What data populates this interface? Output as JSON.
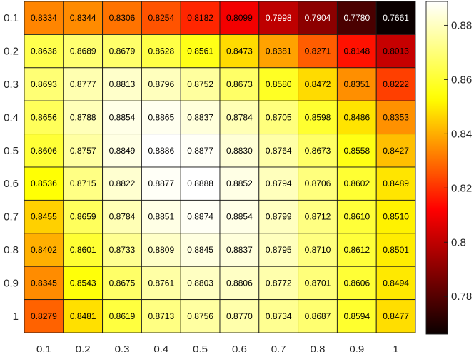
{
  "chart_data": {
    "type": "heatmap",
    "x_categories": [
      "0.1",
      "0.2",
      "0.3",
      "0.4",
      "0.5",
      "0.6",
      "0.7",
      "0.8",
      "0.9",
      "1"
    ],
    "y_categories": [
      "0.1",
      "0.2",
      "0.3",
      "0.4",
      "0.5",
      "0.6",
      "0.7",
      "0.8",
      "0.9",
      "1"
    ],
    "values": [
      [
        0.8334,
        0.8344,
        0.8306,
        0.8254,
        0.8182,
        0.8099,
        0.7998,
        0.7904,
        0.778,
        0.7661
      ],
      [
        0.8638,
        0.8689,
        0.8679,
        0.8628,
        0.8561,
        0.8473,
        0.8381,
        0.8271,
        0.8148,
        0.8013
      ],
      [
        0.8693,
        0.8777,
        0.8813,
        0.8796,
        0.8752,
        0.8673,
        0.858,
        0.8472,
        0.8351,
        0.8222
      ],
      [
        0.8656,
        0.8788,
        0.8854,
        0.8865,
        0.8837,
        0.8784,
        0.8705,
        0.8598,
        0.8486,
        0.8353
      ],
      [
        0.8606,
        0.8757,
        0.8849,
        0.8886,
        0.8877,
        0.883,
        0.8764,
        0.8673,
        0.8558,
        0.8427
      ],
      [
        0.8536,
        0.8715,
        0.8822,
        0.8877,
        0.8888,
        0.8852,
        0.8794,
        0.8706,
        0.8602,
        0.8489
      ],
      [
        0.8455,
        0.8659,
        0.8784,
        0.8851,
        0.8874,
        0.8854,
        0.8799,
        0.8712,
        0.861,
        0.851
      ],
      [
        0.8402,
        0.8601,
        0.8733,
        0.8809,
        0.8845,
        0.8837,
        0.8795,
        0.871,
        0.8612,
        0.8501
      ],
      [
        0.8345,
        0.8543,
        0.8675,
        0.8761,
        0.8803,
        0.8806,
        0.8772,
        0.8701,
        0.8606,
        0.8494
      ],
      [
        0.8279,
        0.8481,
        0.8619,
        0.8713,
        0.8756,
        0.877,
        0.8734,
        0.8687,
        0.8594,
        0.8477
      ]
    ],
    "colormap": "hot",
    "color_range": [
      0.7661,
      0.8888
    ],
    "colorbar": {
      "ticks": [
        0.78,
        0.8,
        0.82,
        0.84,
        0.86,
        0.88
      ],
      "tick_labels": [
        "0.78",
        "0.8",
        "0.82",
        "0.84",
        "0.86",
        "0.88"
      ]
    }
  }
}
